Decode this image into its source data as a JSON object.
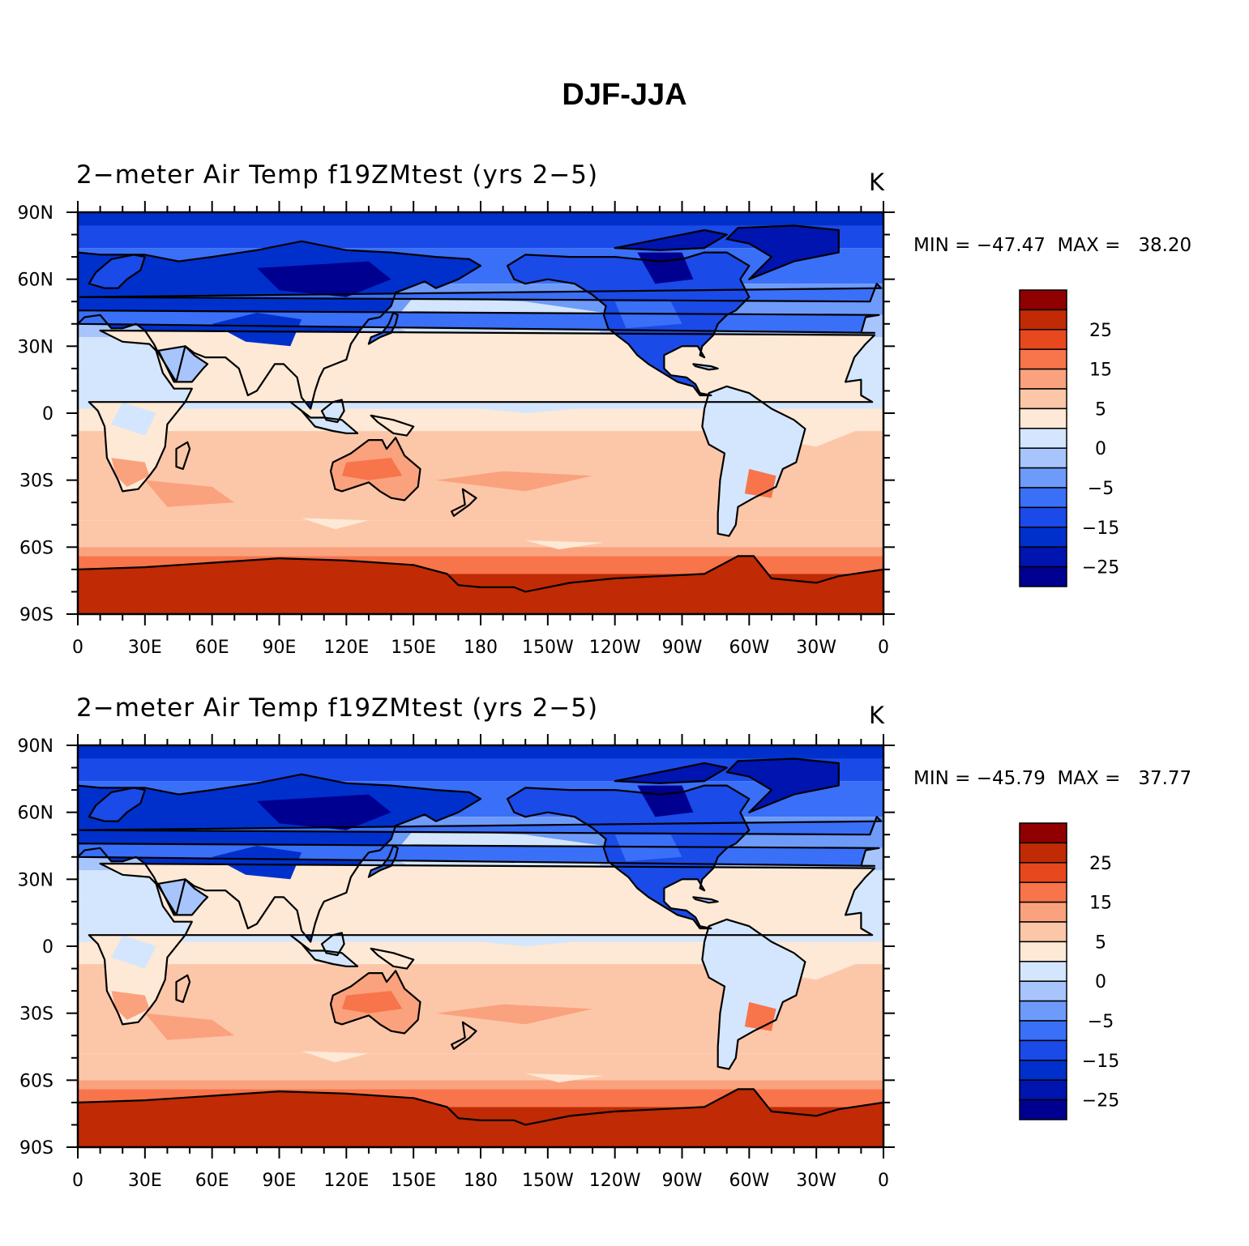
{
  "figure": {
    "title": "DJF-JJA"
  },
  "colors": {
    "levels": [
      "#000090",
      "#0014b0",
      "#0030cc",
      "#1a4ae8",
      "#3a6ff8",
      "#6e9bfa",
      "#a7c4fc",
      "#d3e6fd",
      "#fde9d6",
      "#fcc7a9",
      "#faa27d",
      "#f8744b",
      "#e8481e",
      "#c02a04",
      "#900000"
    ],
    "coast": "#000000"
  },
  "axes": {
    "lon_labels": [
      "0",
      "30E",
      "60E",
      "90E",
      "120E",
      "150E",
      "180",
      "150W",
      "120W",
      "90W",
      "60W",
      "30W",
      "0"
    ],
    "lat_labels": [
      "90N",
      "60N",
      "30N",
      "0",
      "30S",
      "60S",
      "90S"
    ]
  },
  "legend": {
    "labels": [
      "25",
      "15",
      "5",
      "0",
      "−5",
      "−15",
      "−25"
    ]
  },
  "panels": [
    {
      "title": "2−meter Air Temp f19ZMtest (yrs 2−5)",
      "units": "K",
      "stats": "MIN = −47.47  MAX =   38.20"
    },
    {
      "title": "2−meter Air Temp f19ZMtest (yrs 2−5)",
      "units": "K",
      "stats": "MIN = −45.79  MAX =   37.77"
    }
  ]
}
